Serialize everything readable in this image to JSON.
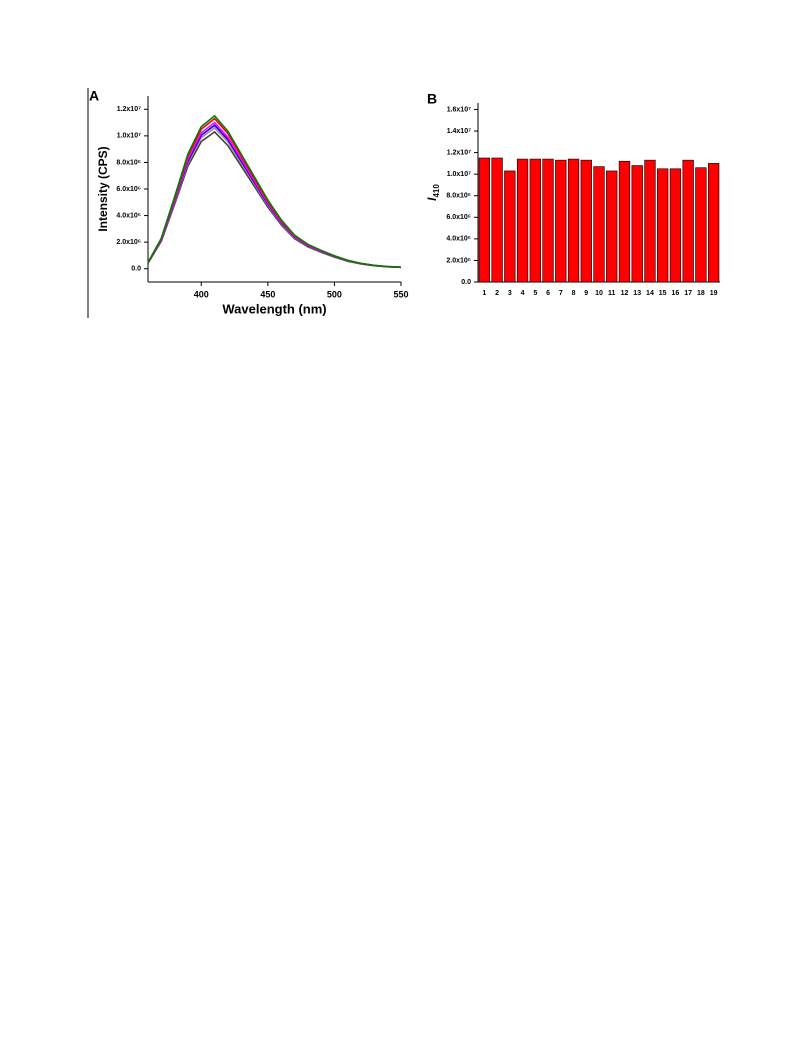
{
  "chart_data": [
    {
      "type": "line",
      "panel": "A",
      "x_label": "Wavelength (nm)",
      "y_label": "Intensity (CPS)",
      "x": [
        360,
        370,
        380,
        390,
        400,
        410,
        420,
        430,
        440,
        450,
        460,
        470,
        480,
        490,
        500,
        510,
        520,
        530,
        540,
        550
      ],
      "xlim": [
        360,
        550
      ],
      "xticks": [
        400,
        450,
        500,
        550
      ],
      "ylim": [
        -1000000,
        13000000
      ],
      "yticks": [
        {
          "value": 0,
          "label": "0.0"
        },
        {
          "value": 2000000,
          "label": "2.0x10⁶"
        },
        {
          "value": 4000000,
          "label": "4.0x10⁶"
        },
        {
          "value": 6000000,
          "label": "6.0x10⁶"
        },
        {
          "value": 8000000,
          "label": "8.0x10⁶"
        },
        {
          "value": 10000000,
          "label": "1.0x10⁷"
        },
        {
          "value": 12000000,
          "label": "1.2x10⁷"
        }
      ],
      "series": [
        {
          "color": "#404040",
          "values": [
            412000,
            2060000,
            4841000,
            7725000,
            9579000,
            10300000,
            9270000,
            7725000,
            6180000,
            4635000,
            3296000,
            2266000,
            1648000,
            1236000,
            875500,
            566500,
            360500,
            226600,
            144200,
            103000
          ]
        },
        {
          "color": "#c08080",
          "values": [
            424000,
            2120000,
            4982000,
            7950000,
            9858000,
            10600000,
            9540000,
            7950000,
            6360000,
            4770000,
            3392000,
            2332000,
            1696000,
            1272000,
            901000,
            583000,
            371000,
            233200,
            148400,
            106000
          ]
        },
        {
          "color": "#0000ff",
          "values": [
            432000,
            2160000,
            5076000,
            8100000,
            10044000,
            10800000,
            9720000,
            8100000,
            6480000,
            4860000,
            3456000,
            2376000,
            1728000,
            1296000,
            918000,
            594000,
            378000,
            237600,
            151200,
            108000
          ]
        },
        {
          "color": "#ff00ff",
          "values": [
            440000,
            2200000,
            5170000,
            8250000,
            10230000,
            11000000,
            9900000,
            8250000,
            6600000,
            4950000,
            3520000,
            2420000,
            1760000,
            1320000,
            935000,
            605000,
            385000,
            242000,
            154000,
            110000
          ]
        },
        {
          "color": "#ff0000",
          "values": [
            452000,
            2260000,
            5311000,
            8475000,
            10509000,
            11300000,
            10170000,
            8475000,
            6780000,
            5085000,
            3616000,
            2486000,
            1808000,
            1356000,
            960500,
            621500,
            395500,
            248600,
            158200,
            113000
          ]
        },
        {
          "color": "#008000",
          "values": [
            460000,
            2300000,
            5405000,
            8625000,
            10695000,
            11500000,
            10350000,
            8625000,
            6900000,
            5175000,
            3680000,
            2530000,
            1840000,
            1380000,
            977500,
            632500,
            402500,
            253000,
            161000,
            115000
          ]
        }
      ]
    },
    {
      "type": "bar",
      "panel": "B",
      "y_label": {
        "text": "I",
        "subscript": "410"
      },
      "color": "#ff0000",
      "categories": [
        "1",
        "2",
        "3",
        "4",
        "5",
        "6",
        "7",
        "8",
        "9",
        "10",
        "11",
        "12",
        "13",
        "14",
        "15",
        "16",
        "17",
        "18",
        "19"
      ],
      "values": [
        11500000,
        11500000,
        10300000,
        11400000,
        11400000,
        11400000,
        11300000,
        11400000,
        11300000,
        10700000,
        10300000,
        11200000,
        10800000,
        11300000,
        10500000,
        10500000,
        11300000,
        10600000,
        11000000
      ],
      "ylim": [
        0,
        16600000
      ],
      "yticks": [
        {
          "value": 0,
          "label": "0.0"
        },
        {
          "value": 2000000,
          "label": "2.0x10⁶"
        },
        {
          "value": 4000000,
          "label": "4.0x10⁶"
        },
        {
          "value": 6000000,
          "label": "6.0x10⁶"
        },
        {
          "value": 8000000,
          "label": "8.0x10⁶"
        },
        {
          "value": 10000000,
          "label": "1.0x10⁷"
        },
        {
          "value": 12000000,
          "label": "1.2x10⁷"
        },
        {
          "value": 14000000,
          "label": "1.4x10⁷"
        },
        {
          "value": 16000000,
          "label": "1.6x10⁷"
        }
      ]
    }
  ]
}
